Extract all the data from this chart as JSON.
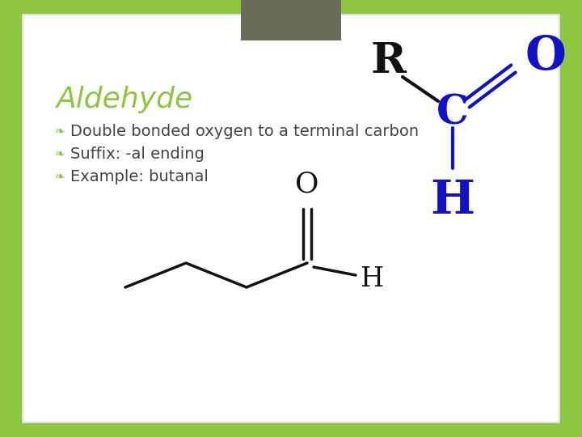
{
  "bg_outer": "#8dc63f",
  "bg_white": "#ffffff",
  "bg_gray_rect": "#6b6b5a",
  "title": "Aldehyde",
  "title_color": "#8dc63f",
  "title_fontsize": 26,
  "bullet_color": "#8dc63f",
  "bullet_items": [
    "Double bonded oxygen to a terminal carbon",
    "Suffix: -al ending",
    "Example: butanal"
  ],
  "bullet_fontsize": 14,
  "text_color": "#444444",
  "R_label": "R",
  "C_label": "C",
  "O_label": "O",
  "H_label": "H",
  "blue_color": "#1111cc",
  "black_color": "#111111"
}
